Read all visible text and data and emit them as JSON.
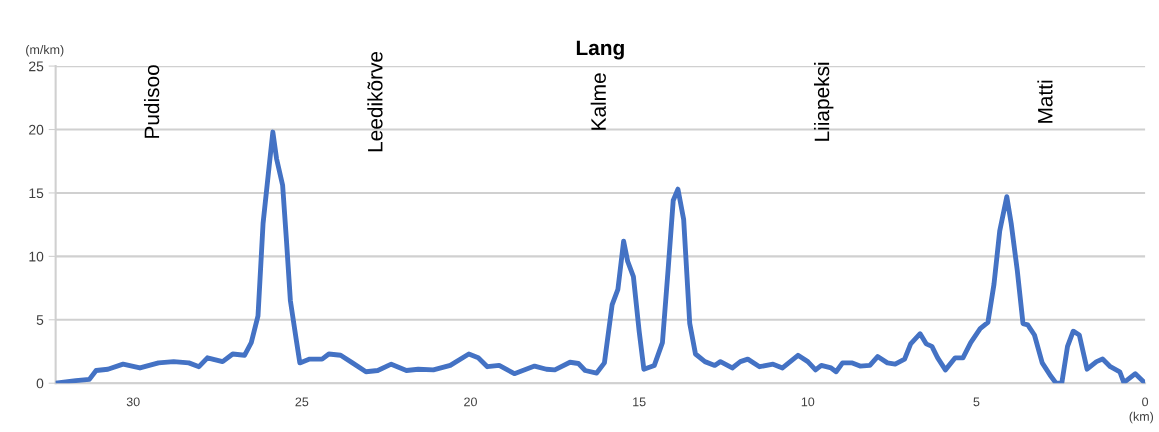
{
  "chart_data": {
    "type": "line",
    "title": "Lang",
    "xlabel": "(km)",
    "ylabel": "(m/km)",
    "x": [
      32.3,
      31.7,
      31.3,
      31.1,
      30.75,
      30.3,
      29.8,
      29.25,
      28.8,
      28.35,
      28.05,
      27.8,
      27.35,
      27.05,
      26.7,
      26.5,
      26.3,
      26.15,
      25.97,
      25.86,
      25.75,
      25.57,
      25.46,
      25.34,
      25.17,
      25.06,
      24.77,
      24.4,
      24.2,
      23.85,
      23.5,
      23.1,
      22.75,
      22.35,
      21.9,
      21.55,
      21.1,
      20.6,
      20.05,
      19.77,
      19.5,
      19.15,
      18.7,
      18.45,
      18.1,
      17.75,
      17.5,
      17.05,
      16.8,
      16.6,
      16.26,
      16.03,
      15.8,
      15.63,
      15.46,
      15.34,
      15.17,
      15.0,
      14.86,
      14.55,
      14.31,
      14.14,
      13.99,
      13.85,
      13.68,
      13.5,
      13.33,
      13.05,
      12.76,
      12.59,
      12.24,
      12.0,
      11.78,
      11.43,
      11.03,
      10.75,
      10.29,
      10.0,
      9.77,
      9.6,
      9.31,
      9.16,
      8.97,
      8.68,
      8.45,
      8.16,
      7.93,
      7.64,
      7.41,
      7.13,
      6.95,
      6.67,
      6.49,
      6.32,
      6.15,
      5.92,
      5.63,
      5.4,
      5.17,
      4.89,
      4.66,
      4.48,
      4.31,
      4.1,
      3.97,
      3.79,
      3.62,
      3.48,
      3.28,
      3.05,
      2.82,
      2.64,
      2.47,
      2.3,
      2.13,
      1.95,
      1.72,
      1.44,
      1.26,
      1.03,
      0.75,
      0.63,
      0.29,
      0
    ],
    "series": [
      {
        "color": "#4472c4",
        "values": [
          0,
          0.2,
          0.3,
          1.0,
          1.1,
          1.5,
          1.2,
          1.6,
          1.7,
          1.6,
          1.3,
          2.0,
          1.7,
          2.3,
          2.2,
          3.2,
          5.3,
          12.6,
          17.1,
          19.8,
          17.7,
          15.6,
          11.4,
          6.5,
          3.5,
          1.6,
          1.9,
          1.9,
          2.3,
          2.2,
          1.6,
          0.9,
          1.0,
          1.5,
          1.0,
          1.1,
          1.05,
          1.4,
          2.3,
          2.0,
          1.3,
          1.4,
          0.75,
          1.0,
          1.35,
          1.1,
          1.05,
          1.65,
          1.55,
          1.0,
          0.8,
          1.6,
          6.2,
          7.4,
          11.2,
          9.6,
          8.4,
          4.1,
          1.1,
          1.4,
          3.2,
          9.0,
          14.4,
          15.3,
          12.9,
          4.7,
          2.3,
          1.7,
          1.4,
          1.7,
          1.2,
          1.7,
          1.9,
          1.3,
          1.5,
          1.2,
          2.2,
          1.7,
          1.05,
          1.4,
          1.2,
          0.9,
          1.6,
          1.6,
          1.35,
          1.4,
          2.1,
          1.6,
          1.5,
          1.9,
          3.1,
          3.9,
          3.1,
          2.9,
          2.0,
          1.05,
          2.0,
          2.0,
          3.2,
          4.3,
          4.8,
          7.8,
          12.0,
          14.7,
          12.6,
          8.9,
          4.7,
          4.6,
          3.8,
          1.6,
          0.65,
          0,
          0,
          2.9,
          4.1,
          3.8,
          1.1,
          1.7,
          1.9,
          1.3,
          0.9,
          0.05,
          0.75,
          0
        ]
      }
    ],
    "xlim": [
      32.3,
      0
    ],
    "xticks": [
      30,
      25,
      20,
      15,
      10,
      5,
      0
    ],
    "ylim": [
      0,
      25
    ],
    "yticks": [
      0,
      5,
      10,
      15,
      20,
      25
    ],
    "grid": "y",
    "legend": false,
    "marker": "none",
    "line_style": "solid",
    "annotations": [
      "Pudisoo",
      "Leedikõrve",
      "Kalme",
      "Liiapeksi",
      "Matti"
    ]
  }
}
